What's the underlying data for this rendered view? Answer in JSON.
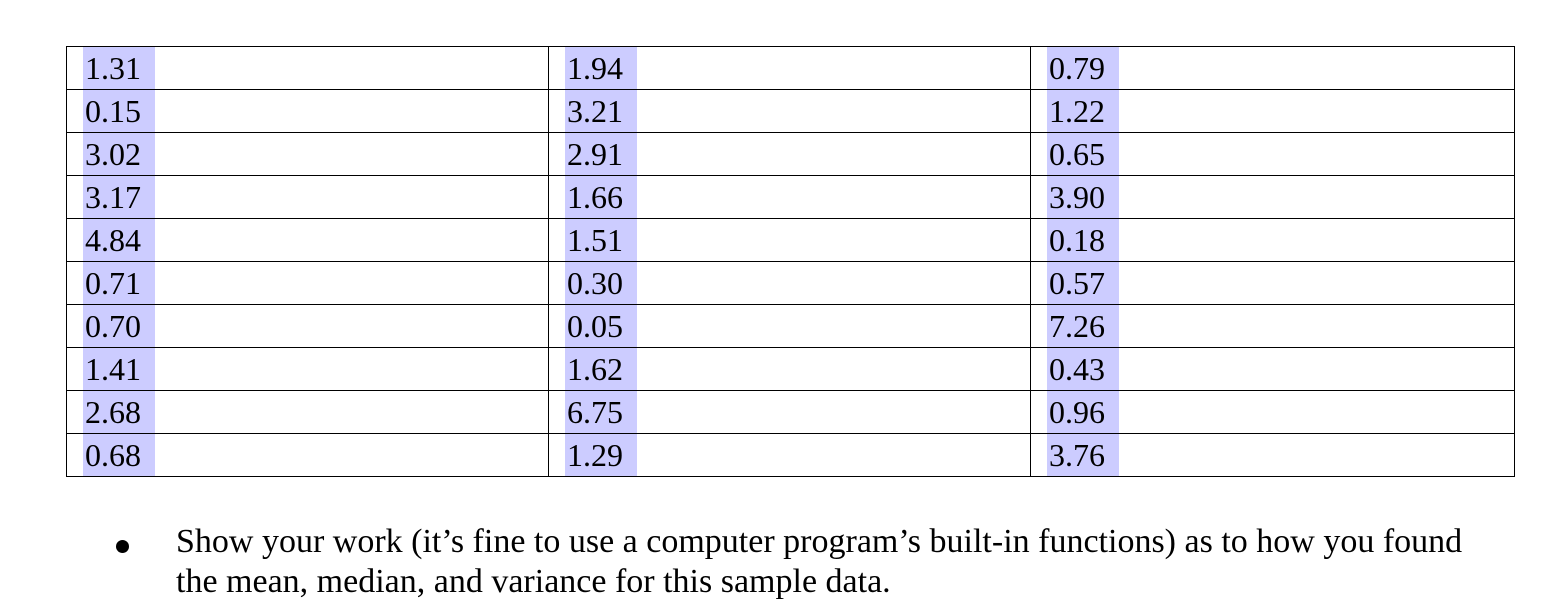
{
  "table": {
    "rows": [
      [
        "1.31",
        "1.94",
        "0.79"
      ],
      [
        "0.15",
        "3.21",
        "1.22"
      ],
      [
        "3.02",
        "2.91",
        "0.65"
      ],
      [
        "3.17",
        "1.66",
        "3.90"
      ],
      [
        "4.84",
        "1.51",
        "0.18"
      ],
      [
        "0.71",
        "0.30",
        "0.57"
      ],
      [
        "0.70",
        "0.05",
        "7.26"
      ],
      [
        "1.41",
        "1.62",
        "0.43"
      ],
      [
        "2.68",
        "6.75",
        "0.96"
      ],
      [
        "0.68",
        "1.29",
        "3.76"
      ]
    ],
    "highlight_color": "#ccccff"
  },
  "instructions": {
    "bullet_text": "Show your work (it’s fine to use a computer program’s built-in functions) as to how you found the mean, median, and variance for this sample data."
  }
}
